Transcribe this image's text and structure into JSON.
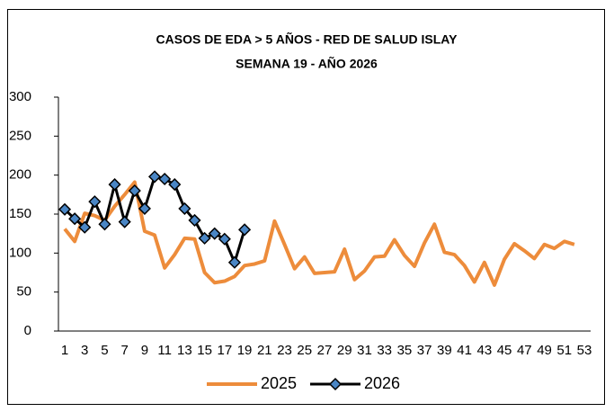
{
  "chart_data": {
    "type": "line",
    "title": "CASOS DE EDA > 5 AÑOS - RED DE SALUD ISLAY",
    "subtitle": "SEMANA 19 -  AÑO 2026",
    "categories": [
      1,
      null,
      3,
      null,
      5,
      null,
      7,
      null,
      9,
      null,
      11,
      null,
      13,
      null,
      15,
      null,
      17,
      null,
      19,
      null,
      21,
      null,
      23,
      null,
      25,
      null,
      27,
      null,
      29,
      null,
      31,
      null,
      33,
      null,
      35,
      null,
      37,
      null,
      39,
      null,
      41,
      null,
      43,
      null,
      45,
      null,
      47,
      null,
      49,
      null,
      51,
      null,
      53
    ],
    "series": [
      {
        "name": "2025",
        "color": "#ed8c3b",
        "values": [
          131,
          115,
          151,
          148,
          142,
          160,
          175,
          191,
          128,
          123,
          81,
          98,
          119,
          118,
          75,
          62,
          64,
          70,
          84,
          86,
          90,
          141,
          111,
          80,
          95,
          74,
          75,
          76,
          105,
          66,
          77,
          95,
          96,
          117,
          97,
          83,
          113,
          137,
          101,
          98,
          84,
          63,
          88,
          59,
          92,
          112,
          103,
          93,
          111,
          106,
          115,
          111,
          null
        ]
      },
      {
        "name": "2026",
        "color": "#000000",
        "marker_color": "#4a86c5",
        "values": [
          156,
          144,
          133,
          166,
          137,
          188,
          140,
          180,
          157,
          198,
          195,
          188,
          157,
          142,
          119,
          125,
          118,
          88,
          130,
          null,
          null,
          null,
          null,
          null,
          null,
          null,
          null,
          null,
          null,
          null,
          null,
          null,
          null,
          null,
          null,
          null,
          null,
          null,
          null,
          null,
          null,
          null,
          null,
          null,
          null,
          null,
          null,
          null,
          null,
          null,
          null,
          null,
          null
        ]
      }
    ],
    "ylim": [
      0,
      300
    ],
    "yticks": [
      0,
      50,
      100,
      150,
      200,
      250,
      300
    ],
    "grid": false,
    "legend": "bottom"
  }
}
